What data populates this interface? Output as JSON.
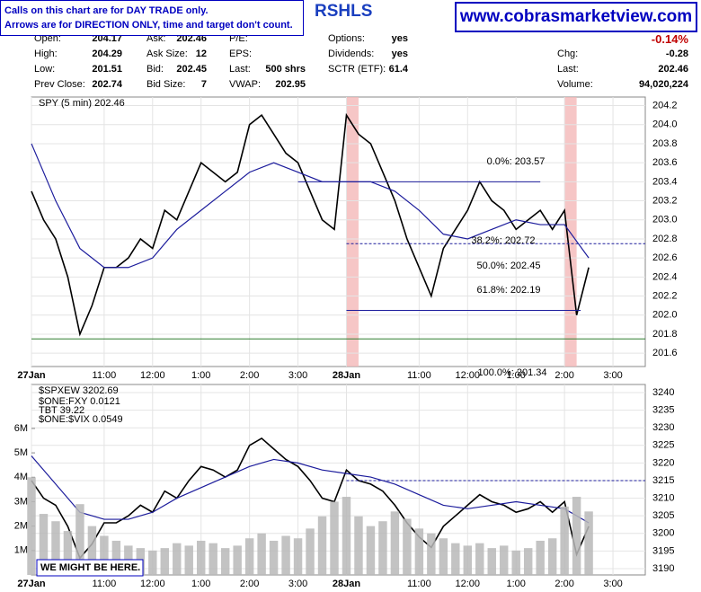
{
  "notes": [
    "Calls on this chart are for DAY TRADE only.",
    "Arrows are for DIRECTION ONLY, time and target don't count."
  ],
  "symbol": "RSHLS",
  "website": "www.cobrasmarketview.com",
  "quote": {
    "columns": [
      [
        {
          "label": "Open:",
          "value": "204.17"
        },
        {
          "label": "High:",
          "value": "204.29"
        },
        {
          "label": "Low:",
          "value": "201.51"
        },
        {
          "label": "Prev Close:",
          "value": "202.74"
        }
      ],
      [
        {
          "label": "Ask:",
          "value": "202.46"
        },
        {
          "label": "Ask Size:",
          "value": "12"
        },
        {
          "label": "Bid:",
          "value": "202.45"
        },
        {
          "label": "Bid Size:",
          "value": "7"
        }
      ],
      [
        {
          "label": "P/E:"
        },
        {
          "label": "EPS:"
        },
        {
          "label": "Last:",
          "value": "500 shrs"
        },
        {
          "label": "VWAP:",
          "value": "202.95"
        }
      ],
      [
        {
          "label": "Options:",
          "value": "yes"
        },
        {
          "label": "Dividends:",
          "value": "yes"
        },
        {
          "label": "SCTR (ETF):",
          "value": "61.4"
        }
      ],
      [
        {
          "value": "-0.14%"
        },
        {
          "label": "Chg:",
          "value": "-0.28"
        },
        {
          "label": "Last:",
          "value": "202.46"
        },
        {
          "label": "Volume:",
          "value": "94,020,224"
        }
      ]
    ]
  },
  "chart_data": [
    {
      "type": "line",
      "title": "SPY (5 min) 202.46",
      "x": [
        0,
        3,
        6,
        9,
        12,
        15,
        18,
        21,
        24,
        27,
        30,
        33,
        36,
        39,
        42,
        45,
        48,
        51,
        54,
        57,
        60,
        63,
        66,
        69,
        72,
        75,
        78,
        81,
        84,
        87,
        90,
        93,
        96,
        99,
        102,
        105,
        108,
        111,
        114,
        117,
        120,
        123,
        126,
        129,
        132,
        135,
        138
      ],
      "series": [
        {
          "name": "SPY",
          "color": "#000000",
          "values": [
            203.3,
            203.0,
            202.8,
            202.4,
            201.8,
            202.1,
            202.5,
            202.5,
            202.6,
            202.8,
            202.7,
            203.1,
            203.0,
            203.3,
            203.6,
            203.5,
            203.4,
            203.5,
            204.0,
            204.1,
            203.9,
            203.7,
            203.6,
            203.3,
            203.0,
            202.9,
            204.1,
            203.9,
            203.8,
            203.5,
            203.2,
            202.8,
            202.5,
            202.2,
            202.7,
            202.9,
            203.1,
            203.4,
            203.2,
            203.1,
            202.9,
            203.0,
            203.1,
            202.9,
            203.1,
            202.0,
            202.5
          ]
        },
        {
          "name": "MA",
          "color": "#1c1c9c",
          "x": [
            0,
            6,
            12,
            18,
            24,
            30,
            36,
            42,
            48,
            54,
            60,
            66,
            72,
            78,
            84,
            90,
            96,
            102,
            108,
            114,
            120,
            126,
            132,
            138
          ],
          "values": [
            203.8,
            203.2,
            202.7,
            202.5,
            202.5,
            202.6,
            202.9,
            203.1,
            203.3,
            203.5,
            203.6,
            203.5,
            203.4,
            203.4,
            203.4,
            203.3,
            203.1,
            202.85,
            202.8,
            202.9,
            203.0,
            202.95,
            202.95,
            202.6
          ]
        }
      ],
      "xlim": [
        0,
        152
      ],
      "xticks": [
        {
          "value": 0,
          "label": "27Jan"
        },
        {
          "value": 18,
          "label": "11:00"
        },
        {
          "value": 30,
          "label": "12:00"
        },
        {
          "value": 42,
          "label": "1:00"
        },
        {
          "value": 54,
          "label": "2:00"
        },
        {
          "value": 66,
          "label": "3:00"
        },
        {
          "value": 78,
          "label": "28Jan"
        },
        {
          "value": 96,
          "label": "11:00"
        },
        {
          "value": 108,
          "label": "12:00"
        },
        {
          "value": 120,
          "label": "1:00"
        },
        {
          "value": 132,
          "label": "2:00"
        },
        {
          "value": 144,
          "label": "3:00"
        }
      ],
      "ylim": [
        201.46,
        204.29
      ],
      "yticks": [
        201.6,
        201.8,
        {
          "value": 202,
          "label": "202.0"
        },
        202.2,
        202.4,
        202.6,
        202.8,
        {
          "value": 203,
          "label": "203.0"
        },
        203.2,
        203.4,
        203.6,
        203.8,
        {
          "value": 204,
          "label": "204.0"
        },
        204.2
      ],
      "highlights": [
        [
          78,
          81
        ],
        [
          132,
          135
        ]
      ],
      "hlines": [
        {
          "value": 203.4,
          "from": 66,
          "to": 126,
          "color": "#1c1c9c"
        },
        {
          "value": 202.05,
          "from": 78,
          "to": 136,
          "color": "#1c1c9c"
        },
        {
          "value": 202.75,
          "from": 78,
          "to": 152,
          "color": "#1c1c9c",
          "dashed": true
        },
        {
          "value": 201.75,
          "from": 0,
          "to": 152,
          "color": "#2d7d2d"
        }
      ],
      "annotations": [
        "0.0%: 203.57",
        "38.2%: 202.72",
        "50.0%: 202.45",
        "61.8%: 202.19",
        "100.0%: 201.34"
      ]
    },
    {
      "type": "line",
      "title": "$SPXEW 3202.69",
      "legend": [
        {
          "text": "$ONE:FXY 0.0121",
          "color": "#2e8b2e"
        },
        {
          "text": "TBT 39.22",
          "color": "#e040e0"
        },
        {
          "text": "$ONE:$VIX 0.0549",
          "color": "#8040c0"
        }
      ],
      "x": [
        0,
        3,
        6,
        9,
        12,
        15,
        18,
        21,
        24,
        27,
        30,
        33,
        36,
        39,
        42,
        45,
        48,
        51,
        54,
        57,
        60,
        63,
        66,
        69,
        72,
        75,
        78,
        81,
        84,
        87,
        90,
        93,
        96,
        99,
        102,
        105,
        108,
        111,
        114,
        117,
        120,
        123,
        126,
        129,
        132,
        135,
        138
      ],
      "series": [
        {
          "name": "$SPXEW",
          "color": "#000000",
          "axis": "y2",
          "values": [
            3215,
            3210,
            3208,
            3202,
            3193,
            3197,
            3203,
            3203,
            3205,
            3208,
            3206,
            3212,
            3210,
            3215,
            3219,
            3218,
            3216,
            3218,
            3225,
            3227,
            3224,
            3221,
            3219,
            3215,
            3210,
            3209,
            3218,
            3215,
            3214,
            3212,
            3208,
            3203,
            3199,
            3196,
            3202,
            3205,
            3208,
            3211,
            3209,
            3208,
            3206,
            3207,
            3209,
            3206,
            3209,
            3194,
            3202
          ]
        },
        {
          "name": "MA",
          "color": "#1c1c9c",
          "axis": "y2",
          "x": [
            0,
            6,
            12,
            18,
            24,
            30,
            36,
            42,
            48,
            54,
            60,
            66,
            72,
            78,
            84,
            90,
            96,
            102,
            108,
            114,
            120,
            126,
            132,
            138
          ],
          "values": [
            3222,
            3214,
            3206,
            3204,
            3204,
            3206,
            3210,
            3213,
            3216,
            3219,
            3221,
            3220,
            3218,
            3217,
            3216,
            3214,
            3211,
            3208,
            3207,
            3208,
            3209,
            3208,
            3207,
            3203
          ]
        },
        {
          "name": "Volume",
          "type": "bar",
          "color": "#b8b8b8",
          "values": [
            4000000,
            2500000,
            2200000,
            1800000,
            2900000,
            2000000,
            1600000,
            1400000,
            1200000,
            1100000,
            1000000,
            1100000,
            1300000,
            1200000,
            1400000,
            1300000,
            1100000,
            1200000,
            1500000,
            1700000,
            1400000,
            1600000,
            1500000,
            1900000,
            2400000,
            3000000,
            3200000,
            2400000,
            2000000,
            2200000,
            2600000,
            2300000,
            1900000,
            1700000,
            1500000,
            1300000,
            1200000,
            1300000,
            1100000,
            1200000,
            1000000,
            1100000,
            1400000,
            1500000,
            2800000,
            3200000,
            2600000
          ]
        }
      ],
      "xlim": [
        0,
        152
      ],
      "xticks": [
        {
          "value": 0,
          "label": "27Jan"
        },
        {
          "value": 18,
          "label": "11:00"
        },
        {
          "value": 30,
          "label": "12:00"
        },
        {
          "value": 42,
          "label": "1:00"
        },
        {
          "value": 54,
          "label": "2:00"
        },
        {
          "value": 66,
          "label": "3:00"
        },
        {
          "value": 78,
          "label": "28Jan"
        },
        {
          "value": 96,
          "label": "11:00"
        },
        {
          "value": 108,
          "label": "12:00"
        },
        {
          "value": 120,
          "label": "1:00"
        },
        {
          "value": 132,
          "label": "2:00"
        },
        {
          "value": 144,
          "label": "3:00"
        }
      ],
      "ylim": [
        0,
        7800000
      ],
      "yticks": [
        {
          "value": 1000000,
          "label": "1M"
        },
        {
          "value": 2000000,
          "label": "2M"
        },
        {
          "value": 3000000,
          "label": "3M"
        },
        {
          "value": 4000000,
          "label": "4M"
        },
        {
          "value": 5000000,
          "label": "5M"
        },
        {
          "value": 6000000,
          "label": "6M"
        }
      ],
      "y2lim": [
        3188.2,
        3242.3
      ],
      "y2ticks": [
        3190,
        3195,
        3200,
        3205,
        3210,
        3215,
        3220,
        3225,
        3230,
        3235,
        3240
      ],
      "hlines": [
        {
          "value": 3215,
          "from": 78,
          "to": 152,
          "color": "#1c1c9c",
          "dashed": true,
          "axis": "y2"
        }
      ],
      "annotations": [
        "WE MIGHT BE HERE."
      ]
    }
  ]
}
